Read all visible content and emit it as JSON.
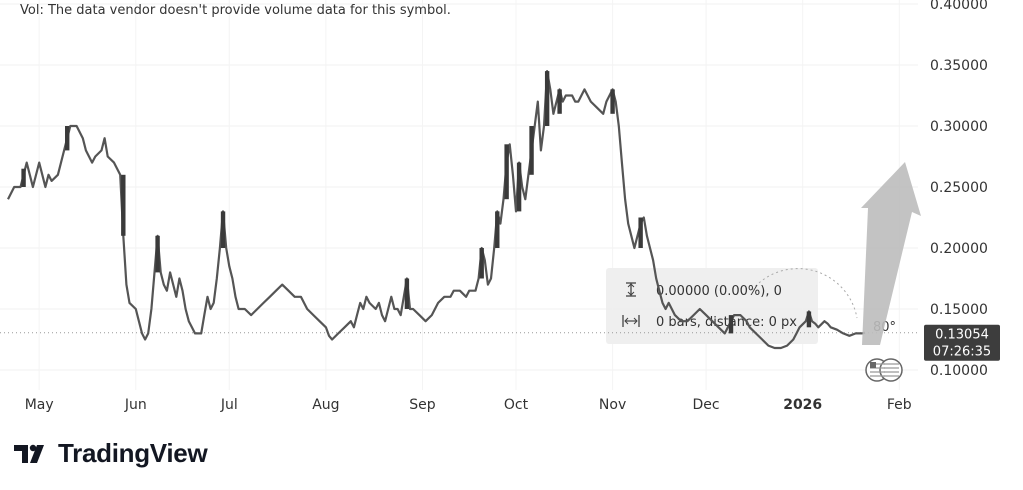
{
  "vol_note": "Vol: The data vendor doesn't provide volume data for this symbol.",
  "brand": {
    "name": "TradingView",
    "logo_icon": "tradingview-logo-icon"
  },
  "price_tag": {
    "price": "0.13054",
    "countdown": "07:26:35"
  },
  "measure_tool": {
    "price_range": "0.00000 (0.00%), 0",
    "bars_distance": "0 bars, distance: 0 px",
    "angle": "80°"
  },
  "colors": {
    "line": "#555555",
    "candle": "#3a3a3a",
    "price_tag_bg": "#3d3d3d",
    "arrow": "#bdbdbd",
    "measure_bg": "#eeeeee",
    "current_price_line": "#999999"
  },
  "chart_data": {
    "type": "line",
    "title": "",
    "xlabel": "",
    "ylabel": "",
    "ylim": [
      0.085,
      0.405
    ],
    "y_ticks": [
      "0.40000",
      "0.35000",
      "0.30000",
      "0.25000",
      "0.20000",
      "0.15000",
      "0.10000"
    ],
    "x_ticks": [
      {
        "label": "May",
        "bold": false
      },
      {
        "label": "Jun",
        "bold": false
      },
      {
        "label": "Jul",
        "bold": false
      },
      {
        "label": "Aug",
        "bold": false
      },
      {
        "label": "Sep",
        "bold": false
      },
      {
        "label": "Oct",
        "bold": false
      },
      {
        "label": "Nov",
        "bold": false
      },
      {
        "label": "Dec",
        "bold": false
      },
      {
        "label": "2026",
        "bold": true
      },
      {
        "label": "Feb",
        "bold": false
      }
    ],
    "x_tick_days": [
      10,
      41,
      71,
      102,
      133,
      163,
      194,
      224,
      255,
      286
    ],
    "x_range_days": [
      0,
      292
    ],
    "last_price": 0.13054,
    "series": [
      {
        "points": [
          [
            0,
            0.24
          ],
          [
            2,
            0.25
          ],
          [
            4,
            0.25
          ],
          [
            5,
            0.26
          ],
          [
            6,
            0.27
          ],
          [
            7,
            0.26
          ],
          [
            8,
            0.25
          ],
          [
            10,
            0.27
          ],
          [
            11,
            0.26
          ],
          [
            12,
            0.25
          ],
          [
            13,
            0.26
          ],
          [
            14,
            0.255
          ],
          [
            16,
            0.26
          ],
          [
            18,
            0.28
          ],
          [
            19,
            0.29
          ],
          [
            20,
            0.3
          ],
          [
            22,
            0.3
          ],
          [
            24,
            0.29
          ],
          [
            25,
            0.28
          ],
          [
            26,
            0.275
          ],
          [
            27,
            0.27
          ],
          [
            28,
            0.275
          ],
          [
            30,
            0.28
          ],
          [
            31,
            0.29
          ],
          [
            32,
            0.275
          ],
          [
            34,
            0.27
          ],
          [
            36,
            0.26
          ],
          [
            37,
            0.21
          ],
          [
            38,
            0.17
          ],
          [
            39,
            0.155
          ],
          [
            41,
            0.15
          ],
          [
            42,
            0.14
          ],
          [
            43,
            0.13
          ],
          [
            44,
            0.125
          ],
          [
            45,
            0.13
          ],
          [
            46,
            0.15
          ],
          [
            47,
            0.18
          ],
          [
            48,
            0.21
          ],
          [
            49,
            0.18
          ],
          [
            50,
            0.17
          ],
          [
            51,
            0.165
          ],
          [
            52,
            0.18
          ],
          [
            53,
            0.17
          ],
          [
            54,
            0.16
          ],
          [
            55,
            0.175
          ],
          [
            56,
            0.165
          ],
          [
            57,
            0.15
          ],
          [
            58,
            0.14
          ],
          [
            59,
            0.135
          ],
          [
            60,
            0.13
          ],
          [
            62,
            0.13
          ],
          [
            63,
            0.145
          ],
          [
            64,
            0.16
          ],
          [
            65,
            0.15
          ],
          [
            66,
            0.155
          ],
          [
            67,
            0.175
          ],
          [
            68,
            0.2
          ],
          [
            69,
            0.23
          ],
          [
            70,
            0.2
          ],
          [
            71,
            0.185
          ],
          [
            72,
            0.175
          ],
          [
            73,
            0.16
          ],
          [
            74,
            0.15
          ],
          [
            76,
            0.15
          ],
          [
            78,
            0.145
          ],
          [
            80,
            0.15
          ],
          [
            82,
            0.155
          ],
          [
            84,
            0.16
          ],
          [
            86,
            0.165
          ],
          [
            88,
            0.17
          ],
          [
            90,
            0.165
          ],
          [
            92,
            0.16
          ],
          [
            94,
            0.16
          ],
          [
            96,
            0.15
          ],
          [
            98,
            0.145
          ],
          [
            100,
            0.14
          ],
          [
            102,
            0.135
          ],
          [
            103,
            0.128
          ],
          [
            104,
            0.125
          ],
          [
            106,
            0.13
          ],
          [
            108,
            0.135
          ],
          [
            110,
            0.14
          ],
          [
            111,
            0.135
          ],
          [
            112,
            0.145
          ],
          [
            113,
            0.155
          ],
          [
            114,
            0.15
          ],
          [
            115,
            0.16
          ],
          [
            116,
            0.155
          ],
          [
            118,
            0.15
          ],
          [
            119,
            0.155
          ],
          [
            120,
            0.145
          ],
          [
            121,
            0.14
          ],
          [
            122,
            0.15
          ],
          [
            123,
            0.16
          ],
          [
            124,
            0.15
          ],
          [
            125,
            0.15
          ],
          [
            126,
            0.145
          ],
          [
            127,
            0.16
          ],
          [
            128,
            0.175
          ],
          [
            129,
            0.15
          ],
          [
            130,
            0.15
          ],
          [
            132,
            0.145
          ],
          [
            134,
            0.14
          ],
          [
            136,
            0.145
          ],
          [
            138,
            0.155
          ],
          [
            140,
            0.16
          ],
          [
            142,
            0.16
          ],
          [
            143,
            0.165
          ],
          [
            145,
            0.165
          ],
          [
            147,
            0.16
          ],
          [
            148,
            0.165
          ],
          [
            150,
            0.165
          ],
          [
            151,
            0.175
          ],
          [
            152,
            0.2
          ],
          [
            153,
            0.19
          ],
          [
            154,
            0.17
          ],
          [
            155,
            0.175
          ],
          [
            156,
            0.2
          ],
          [
            157,
            0.23
          ],
          [
            158,
            0.22
          ],
          [
            159,
            0.24
          ],
          [
            160,
            0.27
          ],
          [
            161,
            0.285
          ],
          [
            162,
            0.26
          ],
          [
            163,
            0.23
          ],
          [
            164,
            0.27
          ],
          [
            165,
            0.25
          ],
          [
            166,
            0.24
          ],
          [
            167,
            0.26
          ],
          [
            168,
            0.28
          ],
          [
            169,
            0.3
          ],
          [
            170,
            0.32
          ],
          [
            171,
            0.28
          ],
          [
            172,
            0.3
          ],
          [
            173,
            0.345
          ],
          [
            174,
            0.33
          ],
          [
            175,
            0.31
          ],
          [
            176,
            0.32
          ],
          [
            177,
            0.33
          ],
          [
            178,
            0.32
          ],
          [
            179,
            0.325
          ],
          [
            181,
            0.325
          ],
          [
            182,
            0.32
          ],
          [
            183,
            0.32
          ],
          [
            185,
            0.33
          ],
          [
            187,
            0.32
          ],
          [
            189,
            0.315
          ],
          [
            191,
            0.31
          ],
          [
            192,
            0.32
          ],
          [
            193,
            0.325
          ],
          [
            194,
            0.33
          ],
          [
            195,
            0.32
          ],
          [
            196,
            0.3
          ],
          [
            197,
            0.27
          ],
          [
            198,
            0.24
          ],
          [
            199,
            0.22
          ],
          [
            200,
            0.21
          ],
          [
            201,
            0.2
          ],
          [
            202,
            0.21
          ],
          [
            203,
            0.22
          ],
          [
            204,
            0.225
          ],
          [
            205,
            0.21
          ],
          [
            206,
            0.2
          ],
          [
            207,
            0.19
          ],
          [
            208,
            0.175
          ],
          [
            209,
            0.165
          ],
          [
            210,
            0.155
          ],
          [
            211,
            0.15
          ],
          [
            212,
            0.155
          ],
          [
            213,
            0.15
          ],
          [
            214,
            0.145
          ],
          [
            216,
            0.14
          ],
          [
            218,
            0.14
          ],
          [
            220,
            0.145
          ],
          [
            222,
            0.15
          ],
          [
            224,
            0.145
          ],
          [
            226,
            0.14
          ],
          [
            228,
            0.135
          ],
          [
            230,
            0.13
          ],
          [
            231,
            0.135
          ],
          [
            232,
            0.14
          ],
          [
            233,
            0.145
          ],
          [
            235,
            0.145
          ],
          [
            237,
            0.14
          ],
          [
            238,
            0.135
          ],
          [
            240,
            0.13
          ],
          [
            242,
            0.125
          ],
          [
            244,
            0.12
          ],
          [
            246,
            0.118
          ],
          [
            248,
            0.118
          ],
          [
            250,
            0.12
          ],
          [
            252,
            0.125
          ],
          [
            253,
            0.13
          ],
          [
            254,
            0.135
          ],
          [
            256,
            0.14
          ],
          [
            257,
            0.148
          ],
          [
            258,
            0.14
          ],
          [
            259,
            0.138
          ],
          [
            260,
            0.135
          ],
          [
            262,
            0.14
          ],
          [
            263,
            0.138
          ],
          [
            264,
            0.135
          ],
          [
            266,
            0.133
          ],
          [
            268,
            0.13
          ],
          [
            270,
            0.128
          ],
          [
            272,
            0.13
          ],
          [
            274,
            0.13
          ],
          [
            275,
            0.13054
          ]
        ]
      }
    ],
    "candles": [
      {
        "day": 5,
        "open": 0.25,
        "close": 0.265
      },
      {
        "day": 19,
        "open": 0.28,
        "close": 0.3
      },
      {
        "day": 37,
        "open": 0.26,
        "close": 0.21
      },
      {
        "day": 48,
        "open": 0.18,
        "close": 0.21
      },
      {
        "day": 69,
        "open": 0.2,
        "close": 0.23
      },
      {
        "day": 128,
        "open": 0.15,
        "close": 0.175
      },
      {
        "day": 152,
        "open": 0.175,
        "close": 0.2
      },
      {
        "day": 157,
        "open": 0.2,
        "close": 0.23
      },
      {
        "day": 160,
        "open": 0.24,
        "close": 0.285
      },
      {
        "day": 164,
        "open": 0.23,
        "close": 0.27
      },
      {
        "day": 168,
        "open": 0.26,
        "close": 0.3
      },
      {
        "day": 173,
        "open": 0.3,
        "close": 0.345
      },
      {
        "day": 177,
        "open": 0.31,
        "close": 0.33
      },
      {
        "day": 194,
        "open": 0.31,
        "close": 0.33
      },
      {
        "day": 203,
        "open": 0.2,
        "close": 0.225
      },
      {
        "day": 232,
        "open": 0.13,
        "close": 0.145
      },
      {
        "day": 257,
        "open": 0.135,
        "close": 0.148
      }
    ]
  }
}
